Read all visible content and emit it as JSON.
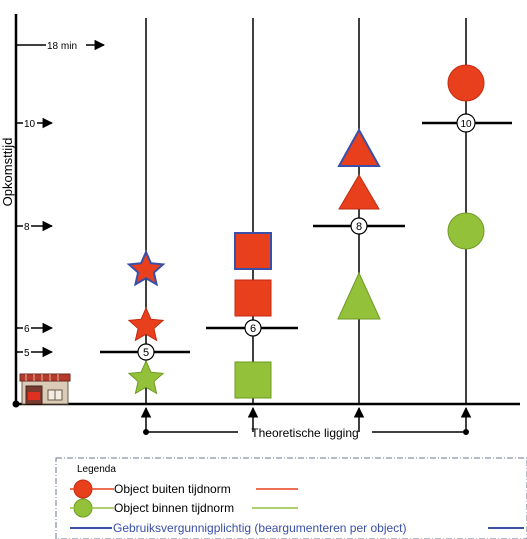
{
  "y_axis": {
    "title": "Opkomsttijd",
    "ticks": [
      {
        "label": "18 min",
        "value": 18
      },
      {
        "label": "10",
        "value": 10
      },
      {
        "label": "8",
        "value": 8
      },
      {
        "label": "6",
        "value": 6
      },
      {
        "label": "5",
        "value": 5
      }
    ]
  },
  "columns": [
    {
      "norm_label": "5",
      "norm_minutes": 5,
      "objects": [
        {
          "shape": "star",
          "status": "binnen tijdnorm"
        },
        {
          "shape": "star",
          "status": "buiten tijdnorm"
        },
        {
          "shape": "star",
          "status": "buiten tijdnorm",
          "gebruiksvergunningplichtig": true
        }
      ]
    },
    {
      "norm_label": "6",
      "norm_minutes": 6,
      "objects": [
        {
          "shape": "square",
          "status": "binnen tijdnorm"
        },
        {
          "shape": "square",
          "status": "buiten tijdnorm"
        },
        {
          "shape": "square",
          "status": "buiten tijdnorm",
          "gebruiksvergunningplichtig": true
        }
      ]
    },
    {
      "norm_label": "8",
      "norm_minutes": 8,
      "objects": [
        {
          "shape": "triangle",
          "status": "binnen tijdnorm"
        },
        {
          "shape": "triangle",
          "status": "buiten tijdnorm"
        },
        {
          "shape": "triangle",
          "status": "buiten tijdnorm",
          "gebruiksvergunningplichtig": true
        }
      ]
    },
    {
      "norm_label": "10",
      "norm_minutes": 10,
      "objects": [
        {
          "shape": "circle",
          "status": "binnen tijdnorm"
        },
        {
          "shape": "circle",
          "status": "buiten tijdnorm"
        }
      ]
    }
  ],
  "bracket_label": "Theoretische ligging",
  "legend": {
    "title": "Legenda",
    "items": [
      {
        "label": "Object buiten tijdnorm",
        "color": "#e8401c"
      },
      {
        "label": "Object binnen tijdnorm",
        "color": "#93c23a"
      },
      {
        "label": "Gebruiksvergunnigplichtig (beargumenteren per object)",
        "color": "#3a4fa8"
      }
    ]
  },
  "colors": {
    "red": "#e8401c",
    "green": "#93c23a",
    "blue": "#3a4fa8",
    "axis": "#000000"
  },
  "icons": {
    "origin": "fire-station-icon"
  }
}
